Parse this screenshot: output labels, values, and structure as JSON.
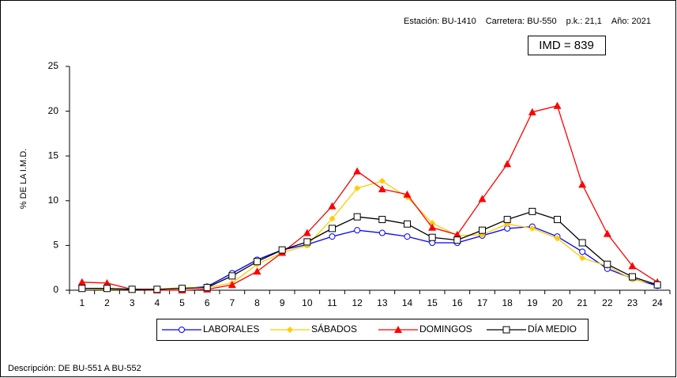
{
  "chart_data": {
    "type": "line",
    "header": [
      "Estación: BU-1410",
      "Carretera: BU-550",
      "p.k.: 21,1",
      "Año: 2021"
    ],
    "annotation": "IMD = 839",
    "ylabel": "% DE LA I.M.D.",
    "footer": "Descripción: DE  BU-551 A  BU-552",
    "categories": [
      1,
      2,
      3,
      4,
      5,
      6,
      7,
      8,
      9,
      10,
      11,
      12,
      13,
      14,
      15,
      16,
      17,
      18,
      19,
      20,
      21,
      22,
      23,
      24
    ],
    "ylim": [
      0,
      25
    ],
    "yticks": [
      0,
      5,
      10,
      15,
      20,
      25
    ],
    "series": [
      {
        "name": "LABORALES",
        "color": "#0000ff",
        "marker": "circle",
        "values": [
          0.2,
          0.2,
          0.1,
          0.1,
          0.2,
          0.4,
          1.9,
          3.4,
          4.5,
          5.1,
          6.0,
          6.7,
          6.4,
          6.0,
          5.3,
          5.3,
          6.1,
          6.9,
          7.1,
          6.0,
          4.3,
          2.4,
          1.3,
          0.5
        ]
      },
      {
        "name": "SÁBADOS",
        "color": "#ffcc00",
        "marker": "diamond",
        "values": [
          0.2,
          0.1,
          0.1,
          0.1,
          0.3,
          0.3,
          0.8,
          2.9,
          4.2,
          5.0,
          8.0,
          11.4,
          12.2,
          10.4,
          7.5,
          6.1,
          6.2,
          7.4,
          6.9,
          5.8,
          3.6,
          2.7,
          1.2,
          0.7
        ]
      },
      {
        "name": "DOMINGOS",
        "color": "#ff0000",
        "marker": "triangle",
        "values": [
          0.9,
          0.8,
          0.1,
          0.0,
          0.0,
          0.1,
          0.6,
          2.1,
          4.2,
          6.4,
          9.4,
          13.3,
          11.3,
          10.7,
          7.0,
          6.2,
          10.2,
          14.1,
          19.9,
          20.6,
          11.8,
          6.3,
          2.7,
          0.9
        ]
      },
      {
        "name": "DÍA MEDIO",
        "color": "#000000",
        "marker": "square",
        "values": [
          0.2,
          0.2,
          0.1,
          0.1,
          0.2,
          0.3,
          1.6,
          3.2,
          4.5,
          5.4,
          6.9,
          8.2,
          7.9,
          7.4,
          5.9,
          5.6,
          6.7,
          7.9,
          8.8,
          7.9,
          5.3,
          2.9,
          1.5,
          0.6
        ]
      }
    ]
  }
}
